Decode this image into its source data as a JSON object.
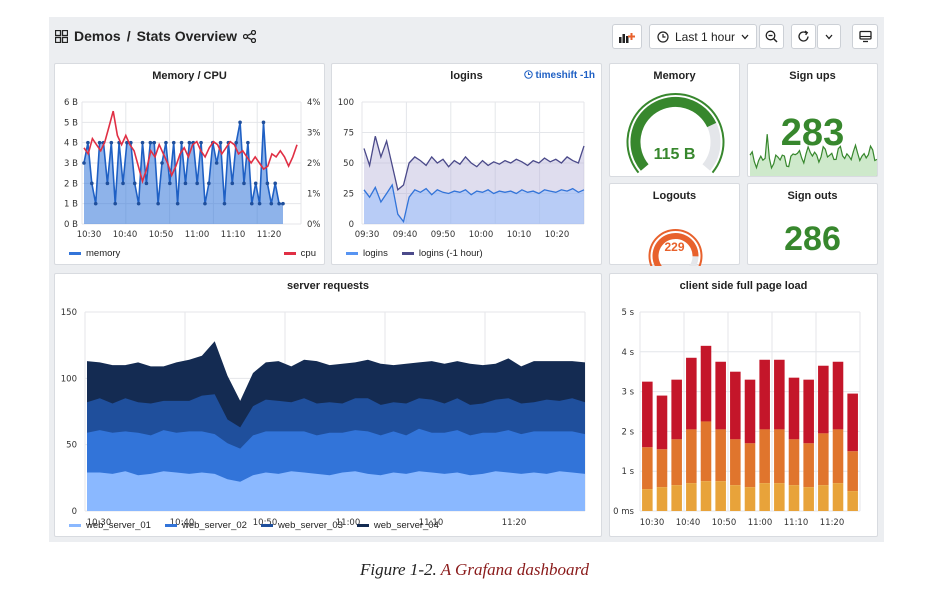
{
  "breadcrumb": {
    "folder": "Demos",
    "separator": "/",
    "dashboard": "Stats Overview"
  },
  "toolbar": {
    "time_range": "Last 1 hour"
  },
  "caption": {
    "prefix": "Figure 1-2. ",
    "link": "A Grafana dashboard"
  },
  "colors": {
    "memory": "#3274d9",
    "cpu": "#e02f44",
    "logins": "#5794f2",
    "logins_prev": "#4b4a8a",
    "green": "#37872d",
    "orange": "#e8612c",
    "bar_red": "#c4162a",
    "bar_orange": "#e0752d",
    "bar_yellow": "#e8a33a"
  },
  "panels": {
    "memory_cpu": {
      "title": "Memory / CPU",
      "legend": [
        "memory",
        "cpu"
      ],
      "chart_data": {
        "type": "line",
        "x_ticks": [
          "10:30",
          "10:40",
          "10:50",
          "11:00",
          "11:10",
          "11:20"
        ],
        "y_left_ticks": [
          "0 B",
          "1 B",
          "2 B",
          "3 B",
          "4 B",
          "5 B",
          "6 B"
        ],
        "y_right_ticks": [
          "0%",
          "1%",
          "2%",
          "3%",
          "4%"
        ],
        "ylim_left": [
          0,
          6
        ],
        "ylim_right": [
          0,
          4
        ],
        "series": [
          {
            "name": "memory",
            "axis": "left",
            "values": [
              3,
              4,
              2,
              1,
              4,
              4,
              2,
              4,
              1,
              4,
              2,
              4,
              4,
              2,
              1,
              4,
              2,
              4,
              4,
              1,
              3,
              4,
              2,
              4,
              1,
              4,
              2,
              4,
              4,
              2,
              4,
              1,
              2,
              4,
              3,
              4,
              1,
              4,
              2,
              4,
              5,
              2,
              4,
              1,
              2,
              1,
              5,
              2,
              1,
              2,
              1,
              1
            ]
          },
          {
            "name": "cpu",
            "axis": "right",
            "values": [
              2.5,
              2.3,
              2.8,
              2.6,
              2.4,
              2.7,
              3.2,
              3.7,
              2.9,
              2.6,
              2.9,
              2.6,
              2.4,
              1.9,
              1.4,
              1.8,
              2.4,
              2.2,
              2.6,
              2.3,
              2.0,
              1.6,
              1.9,
              2.3,
              2.5,
              2.2,
              2.6,
              2.7,
              2.4,
              2.2,
              2.5,
              2.7,
              2.6,
              2.3,
              2.5,
              2.7,
              2.6,
              2.3,
              2.4,
              2.2,
              2.0,
              2.2,
              2.0,
              1.8,
              1.9,
              2.3,
              2.2,
              2.4,
              2.2,
              1.9,
              2.2,
              2.6
            ]
          }
        ]
      }
    },
    "logins": {
      "title": "logins",
      "timeshift": "timeshift -1h",
      "legend": [
        "logins",
        "logins (-1 hour)"
      ],
      "chart_data": {
        "type": "area",
        "x_ticks": [
          "09:30",
          "09:40",
          "09:50",
          "10:00",
          "10:10",
          "10:20"
        ],
        "y_ticks": [
          "0",
          "25",
          "50",
          "75",
          "100"
        ],
        "ylim": [
          0,
          100
        ],
        "series": [
          {
            "name": "logins",
            "values": [
              28,
              22,
              30,
              18,
              25,
              32,
              8,
              2,
              22,
              28,
              26,
              29,
              24,
              28,
              26,
              25,
              27,
              26,
              28,
              24,
              27,
              26,
              28,
              25,
              27,
              26,
              27,
              25,
              28,
              26,
              27,
              25,
              28,
              27,
              26,
              28,
              27,
              29,
              26,
              28
            ]
          },
          {
            "name": "logins (-1 hour)",
            "values": [
              62,
              48,
              72,
              55,
              68,
              48,
              28,
              32,
              50,
              55,
              52,
              48,
              55,
              50,
              53,
              47,
              52,
              49,
              55,
              50,
              47,
              52,
              48,
              51,
              49,
              52,
              50,
              53,
              51,
              48,
              52,
              50,
              54,
              51,
              53,
              50,
              55,
              52,
              50,
              64
            ]
          }
        ]
      }
    },
    "memory_gauge": {
      "title": "Memory",
      "value": "115 B",
      "fraction": 0.75
    },
    "signups": {
      "title": "Sign ups",
      "value": "283"
    },
    "logouts": {
      "title": "Logouts",
      "value": "229",
      "fraction": 0.85
    },
    "signouts": {
      "title": "Sign outs",
      "value": "286"
    },
    "server_requests": {
      "title": "server requests",
      "legend": [
        "web_server_01",
        "web_server_02",
        "web_server_03",
        "web_server_04"
      ],
      "chart_data": {
        "type": "area",
        "x_ticks": [
          "10:30",
          "10:40",
          "10:50",
          "11:00",
          "11:10",
          "11:20"
        ],
        "y_ticks": [
          "0",
          "50",
          "100",
          "150"
        ],
        "ylim": [
          0,
          150
        ],
        "stacked": true,
        "series": [
          {
            "name": "web_server_01",
            "values": [
              29,
              29,
              28,
              30,
              27,
              28,
              30,
              29,
              28,
              29,
              28,
              24,
              22,
              27,
              29,
              28,
              30,
              29,
              28,
              27,
              29,
              30,
              28,
              27,
              29,
              28,
              30,
              29,
              28,
              29,
              27,
              28,
              30,
              29,
              28,
              29,
              28,
              30,
              29,
              28
            ]
          },
          {
            "name": "web_server_02",
            "values": [
              30,
              32,
              31,
              30,
              32,
              29,
              31,
              30,
              32,
              31,
              30,
              27,
              25,
              30,
              31,
              32,
              30,
              31,
              29,
              32,
              30,
              31,
              32,
              30,
              31,
              29,
              32,
              30,
              31,
              32,
              30,
              31,
              29,
              32,
              30,
              31,
              32,
              30,
              31,
              30
            ]
          },
          {
            "name": "web_server_03",
            "values": [
              23,
              24,
              22,
              25,
              23,
              24,
              22,
              24,
              23,
              27,
              30,
              18,
              16,
              22,
              24,
              23,
              22,
              25,
              24,
              23,
              22,
              24,
              25,
              23,
              22,
              24,
              23,
              25,
              22,
              24,
              23,
              22,
              25,
              24,
              23,
              22,
              24,
              23,
              25,
              24
            ]
          },
          {
            "name": "web_server_04",
            "values": [
              31,
              27,
              29,
              25,
              30,
              28,
              26,
              29,
              31,
              30,
              40,
              33,
              20,
              25,
              28,
              30,
              27,
              29,
              32,
              28,
              30,
              27,
              29,
              31,
              28,
              30,
              27,
              29,
              30,
              28,
              31,
              29,
              27,
              30,
              28,
              31,
              29,
              30,
              28,
              30
            ]
          }
        ]
      }
    },
    "page_load": {
      "title": "client side full page load",
      "chart_data": {
        "type": "bar",
        "stacked": true,
        "x_ticks": [
          "10:30",
          "10:40",
          "10:50",
          "11:00",
          "11:10",
          "11:20"
        ],
        "y_ticks": [
          "0 ms",
          "1 s",
          "2 s",
          "3 s",
          "4 s",
          "5 s"
        ],
        "ylim": [
          0,
          5
        ],
        "totals": [
          3.25,
          2.9,
          3.3,
          3.85,
          4.15,
          3.75,
          3.5,
          3.3,
          3.8,
          3.8,
          3.35,
          3.3,
          3.65,
          3.75,
          2.95
        ],
        "segments": [
          {
            "name": "yellow",
            "values": [
              0.55,
              0.6,
              0.65,
              0.7,
              0.75,
              0.75,
              0.65,
              0.6,
              0.7,
              0.7,
              0.65,
              0.6,
              0.65,
              0.7,
              0.5
            ]
          },
          {
            "name": "orange",
            "values": [
              1.05,
              0.95,
              1.15,
              1.35,
              1.5,
              1.3,
              1.15,
              1.1,
              1.35,
              1.35,
              1.15,
              1.1,
              1.3,
              1.35,
              1.0
            ]
          }
        ]
      }
    }
  }
}
